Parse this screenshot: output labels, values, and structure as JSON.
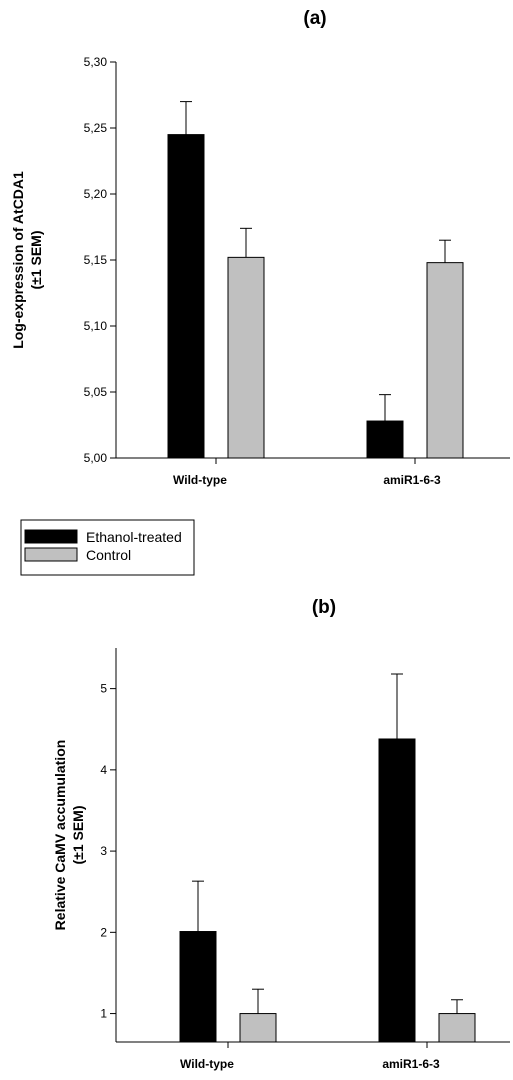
{
  "chart_data": [
    {
      "type": "bar",
      "title": "(a)",
      "ylabel_lines": [
        "Log-expression of AtCDA1",
        "(±1 SEM)"
      ],
      "categories": [
        "Wild-type",
        "amiR1-6-3"
      ],
      "series": [
        {
          "name": "Ethanol-treated",
          "color": "#000000",
          "values": [
            5.245,
            5.028
          ],
          "errors": [
            0.025,
            0.02
          ]
        },
        {
          "name": "Control",
          "color": "#c0c0c0",
          "values": [
            5.152,
            5.148
          ],
          "errors": [
            0.022,
            0.017
          ]
        }
      ],
      "ylim": [
        5.0,
        5.3
      ],
      "yticks": [
        5.0,
        5.05,
        5.1,
        5.15,
        5.2,
        5.25,
        5.3
      ],
      "ytick_labels": [
        "5,00",
        "5,05",
        "5,10",
        "5,15",
        "5,20",
        "5,25",
        "5,30"
      ],
      "grid": false,
      "legend": {
        "placement": "below"
      }
    },
    {
      "type": "bar",
      "title": "(b)",
      "ylabel_lines": [
        "Relative CaMV accumulation",
        "(±1 SEM)"
      ],
      "categories": [
        "Wild-type",
        "amiR1-6-3"
      ],
      "series": [
        {
          "name": "Ethanol-treated",
          "color": "#000000",
          "values": [
            2.01,
            4.38
          ],
          "errors": [
            0.62,
            0.8
          ]
        },
        {
          "name": "Control",
          "color": "#c0c0c0",
          "values": [
            1.0,
            1.0
          ],
          "errors": [
            0.3,
            0.17
          ]
        }
      ],
      "ylim": [
        0.65,
        5.5
      ],
      "yticks": [
        1,
        2,
        3,
        4,
        5
      ],
      "ytick_labels": [
        "1",
        "2",
        "3",
        "4",
        "5"
      ],
      "grid": false
    }
  ],
  "legend": {
    "items": [
      {
        "label": "Ethanol-treated",
        "color": "#000000"
      },
      {
        "label": "Control",
        "color": "#c0c0c0"
      }
    ]
  }
}
